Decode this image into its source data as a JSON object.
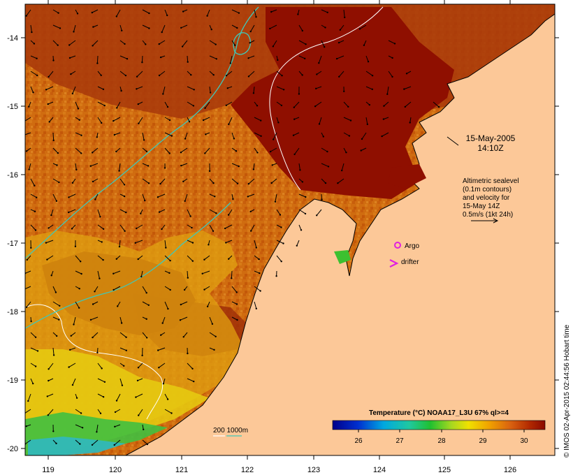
{
  "map": {
    "lat_ticks": [
      "-14",
      "-15",
      "-16",
      "-17",
      "-18",
      "-19",
      "-20"
    ],
    "lon_ticks": [
      "119",
      "120",
      "121",
      "122",
      "123",
      "124",
      "125",
      "126"
    ],
    "timestamp_date": "15-May-2005",
    "timestamp_time": "14:10Z",
    "altimetry_note": [
      "Altimetric sealevel",
      "(0.1m contours)",
      "and velocity for",
      "15-May 14Z",
      "0.5m/s (1kt 24h)"
    ],
    "argo_label": "Argo",
    "drifter_label": "drifter",
    "isobath_label": "200  1000m",
    "colorbar_title": "Temperature (°C) NOAA17_L3U 67% ql>=4",
    "colorbar_ticks": [
      "26",
      "27",
      "28",
      "29",
      "30"
    ],
    "credit": "© IMOS 02-Apr-2015 02:44:56 Hobart time",
    "colors": {
      "land": "#fcc898",
      "sst_warm": "#8f0f00",
      "sst_orange": "#cc6a0a",
      "sst_yellow": "#e8c000",
      "sst_green": "#2ab82a",
      "isobath_200": "#ffffff",
      "isobath_1000": "#40c8b8",
      "argo_marker": "#e020e0",
      "drifter_marker": "#e020e0"
    }
  }
}
